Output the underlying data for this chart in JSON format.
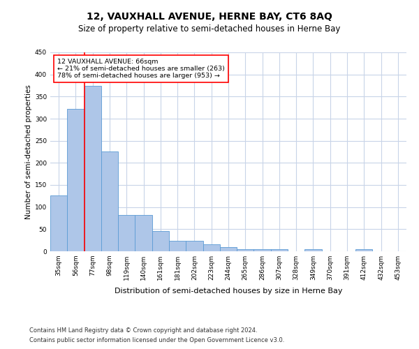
{
  "title": "12, VAUXHALL AVENUE, HERNE BAY, CT6 8AQ",
  "subtitle": "Size of property relative to semi-detached houses in Herne Bay",
  "xlabel": "Distribution of semi-detached houses by size in Herne Bay",
  "ylabel": "Number of semi-detached properties",
  "categories": [
    "35sqm",
    "56sqm",
    "77sqm",
    "98sqm",
    "119sqm",
    "140sqm",
    "161sqm",
    "181sqm",
    "202sqm",
    "223sqm",
    "244sqm",
    "265sqm",
    "286sqm",
    "307sqm",
    "328sqm",
    "349sqm",
    "370sqm",
    "391sqm",
    "412sqm",
    "432sqm",
    "453sqm"
  ],
  "values": [
    127,
    322,
    375,
    226,
    82,
    82,
    46,
    23,
    23,
    16,
    10,
    5,
    5,
    5,
    0,
    5,
    0,
    0,
    5,
    0,
    0
  ],
  "bar_color": "#aec6e8",
  "bar_edge_color": "#5b9bd5",
  "property_line_index": 1,
  "annotation_text": "12 VAUXHALL AVENUE: 66sqm\n← 21% of semi-detached houses are smaller (263)\n78% of semi-detached houses are larger (953) →",
  "annotation_box_color": "white",
  "annotation_box_edge_color": "red",
  "property_line_color": "red",
  "ylim": [
    0,
    450
  ],
  "yticks": [
    0,
    50,
    100,
    150,
    200,
    250,
    300,
    350,
    400,
    450
  ],
  "footer_line1": "Contains HM Land Registry data © Crown copyright and database right 2024.",
  "footer_line2": "Contains public sector information licensed under the Open Government Licence v3.0.",
  "background_color": "#ffffff",
  "grid_color": "#c8d4e8",
  "title_fontsize": 10,
  "subtitle_fontsize": 8.5,
  "ylabel_fontsize": 7.5,
  "xlabel_fontsize": 8,
  "tick_fontsize": 6.5,
  "footer_fontsize": 6
}
